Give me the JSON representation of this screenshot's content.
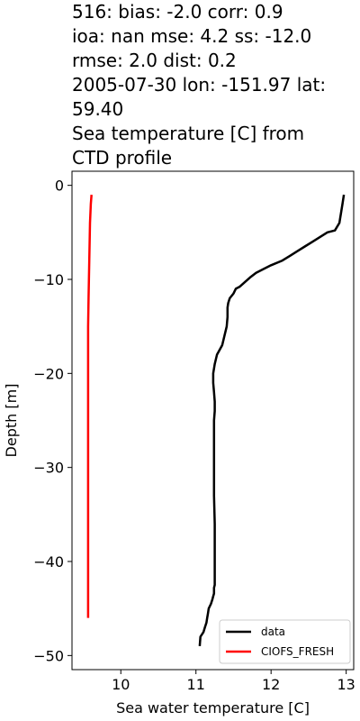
{
  "title": {
    "lines": [
      "516: bias: -2.0  corr: 0.9",
      "ioa: nan  mse: 4.2  ss: -12.0",
      "rmse: 2.0  dist: 0.2",
      "2005-07-30 lon: -151.97 lat:",
      "59.40",
      "Sea temperature [C] from",
      "CTD profile"
    ]
  },
  "chart_data": {
    "type": "line",
    "title": "516: bias: -2.0  corr: 0.9 ioa: nan  mse: 4.2  ss: -12.0 rmse: 2.0  dist: 0.2 2005-07-30 lon: -151.97 lat: 59.40 Sea temperature [C] from CTD profile",
    "xlabel": "Sea water temperature [C]",
    "ylabel": "Depth [m]",
    "xlim": [
      9.35,
      13.1
    ],
    "ylim": [
      -51.5,
      1.5
    ],
    "x_ticks": [
      10,
      11,
      12,
      13
    ],
    "y_ticks": [
      0,
      -10,
      -20,
      -30,
      -40,
      -50
    ],
    "x_tick_labels": [
      "10",
      "11",
      "12",
      "13"
    ],
    "y_tick_labels": [
      "0",
      "−10",
      "−20",
      "−30",
      "−40",
      "−50"
    ],
    "grid": false,
    "legend_position": "lower-right",
    "series": [
      {
        "name": "data",
        "color": "#000000",
        "x": [
          12.97,
          12.95,
          12.93,
          12.91,
          12.85,
          12.75,
          12.55,
          12.45,
          12.35,
          12.25,
          12.15,
          12.0,
          11.9,
          11.8,
          11.72,
          11.65,
          11.58,
          11.53,
          11.5,
          11.45,
          11.43,
          11.42,
          11.42,
          11.41,
          11.38,
          11.35,
          11.28,
          11.25,
          11.23,
          11.23,
          11.24,
          11.25,
          11.25,
          11.24,
          11.24,
          11.24,
          11.24,
          11.25,
          11.25,
          11.25,
          11.25,
          11.24,
          11.24,
          11.24,
          11.24,
          11.23,
          11.22,
          11.2,
          11.17,
          11.16,
          11.15,
          11.14,
          11.12,
          11.1,
          11.06,
          11.05
        ],
        "y": [
          -1,
          -2,
          -3,
          -4,
          -4.8,
          -5,
          -6,
          -6.5,
          -7,
          -7.5,
          -8,
          -8.5,
          -8.9,
          -9.3,
          -9.8,
          -10.3,
          -10.8,
          -11,
          -11.5,
          -12,
          -12.5,
          -13,
          -14,
          -15,
          -16,
          -17,
          -18,
          -19,
          -20,
          -21,
          -22,
          -23,
          -24,
          -25,
          -27,
          -30,
          -33,
          -36,
          -39,
          -41,
          -42.5,
          -42.8,
          -43,
          -43.2,
          -43.4,
          -43.7,
          -44,
          -44.5,
          -45,
          -45.5,
          -46,
          -46.5,
          -47,
          -47.5,
          -48,
          -49
        ]
      },
      {
        "name": "CIOFS_FRESH",
        "color": "#ff0000",
        "x": [
          9.61,
          9.6,
          9.59,
          9.585,
          9.58,
          9.575,
          9.57,
          9.565,
          9.565,
          9.565,
          9.565,
          9.565,
          9.565,
          9.565
        ],
        "y": [
          -1,
          -2,
          -4,
          -6,
          -8,
          -10,
          -12,
          -15,
          -20,
          -25,
          -30,
          -35,
          -40,
          -46
        ]
      }
    ]
  }
}
